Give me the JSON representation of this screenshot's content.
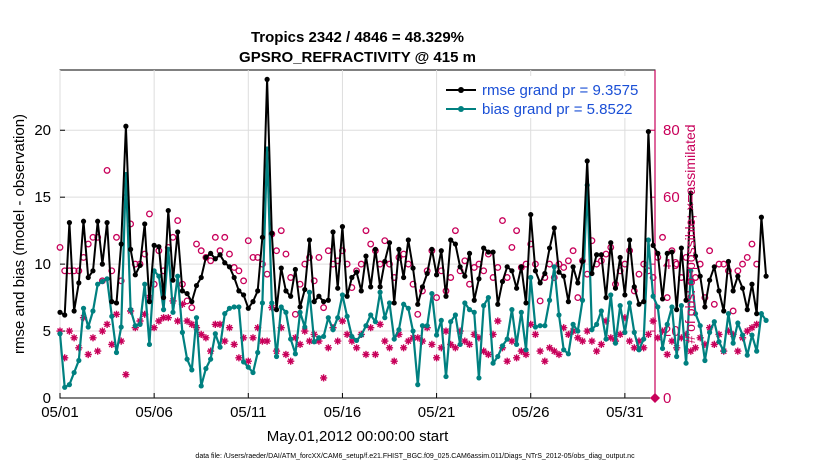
{
  "colors": {
    "rmse": "#000000",
    "bias": "#008080",
    "obs_count": "#c8005a",
    "legend_text": "#1a4fd6",
    "zero_marker": "#c8005a"
  },
  "chart_data": {
    "type": "line",
    "title": "Tropics 2342 / 4846 = 48.329%",
    "subtitle": "GPSRO_REFRACTIVITY @ 415 m",
    "xlabel": "May.01,2012 00:00:00 start",
    "ylabel": "rmse and bias (model - observation)",
    "y2label": "# of obs: o=possible; ×=assimilated",
    "footnote": "data file: /Users/raeder/DAI/ATM_forcXX/CAM6_setup/f.e21.FHIST_BGC.f09_025.CAM6assim.011/Diags_NTrS_2012-05/obs_diag_output.nc",
    "xlim": [
      0,
      31.6
    ],
    "ylim": [
      0,
      24.5
    ],
    "y2lim": [
      0,
      98
    ],
    "x_tick_positions": [
      0,
      5,
      10,
      15,
      20,
      25,
      30
    ],
    "x_tick_labels": [
      "05/01",
      "05/06",
      "05/11",
      "05/16",
      "05/21",
      "05/26",
      "05/31"
    ],
    "y_ticks": [
      0,
      5,
      10,
      15,
      20
    ],
    "y2_ticks": [
      0,
      20,
      40,
      60,
      80
    ],
    "legend": [
      {
        "name": "rmse grand pr = 9.3575",
        "series": "rmse"
      },
      {
        "name": "bias grand pr = 5.8522",
        "series": "bias"
      }
    ],
    "legend_position": "top-right",
    "x_step_days": 0.25,
    "series": [
      {
        "name": "rmse",
        "axis": "left",
        "style": "line-dot",
        "values": [
          6.4,
          6.2,
          13.1,
          6.5,
          8.6,
          13.2,
          9.0,
          9.5,
          13.2,
          10.0,
          13.1,
          7.2,
          7.1,
          11.5,
          20.3,
          11.1,
          9.2,
          9.9,
          13.0,
          7.2,
          11.4,
          11.3,
          7.5,
          14.0,
          8.8,
          12.4,
          8.0,
          7.8,
          7.2,
          8.4,
          9.0,
          10.5,
          10.8,
          10.4,
          10.7,
          10.1,
          9.8,
          9.0,
          8.0,
          7.7,
          6.7,
          7.2,
          8.0,
          12.0,
          23.8,
          12.3,
          6.6,
          9.7,
          8.0,
          7.6,
          9.6,
          6.8,
          8.1,
          11.8,
          7.2,
          7.6,
          7.2,
          7.3,
          12.4,
          8.2,
          12.8,
          7.6,
          9.0,
          9.4,
          8.0,
          10.6,
          8.3,
          11.1,
          8.3,
          10.2,
          11.6,
          7.1,
          11.1,
          9.0,
          11.8,
          9.7,
          7.0,
          8.3,
          9.3,
          11.1,
          9.2,
          11.0,
          7.6,
          11.8,
          11.5,
          9.8,
          9.1,
          10.8,
          7.3,
          8.9,
          11.2,
          10.9,
          10.9,
          7.0,
          8.7,
          9.8,
          9.5,
          8.2,
          9.8,
          7.1,
          13.7,
          9.5,
          8.6,
          9.3,
          11.2,
          12.7,
          9.4,
          9.1,
          7.2,
          9.8,
          8.6,
          10.2,
          17.7,
          9.3,
          10.7,
          10.7,
          7.5,
          11.6,
          8.2,
          10.5,
          7.7,
          11.8,
          8.3,
          7.0,
          7.2,
          19.9,
          11.4,
          10.8,
          7.4,
          10.8,
          10.9,
          6.6,
          11.2,
          7.3,
          15.3,
          10.6,
          9.1,
          6.8,
          8.8,
          9.8,
          8.0,
          6.5,
          10.2,
          8.0,
          9.1,
          8.2,
          6.6,
          8.5,
          6.3,
          13.5,
          9.1
        ]
      },
      {
        "name": "bias",
        "axis": "left",
        "style": "line-dot",
        "values": [
          4.8,
          0.8,
          1.0,
          1.9,
          2.8,
          6.7,
          5.3,
          6.5,
          8.5,
          8.7,
          8.9,
          6.1,
          3.4,
          5.3,
          16.7,
          6.6,
          5.4,
          5.5,
          8.5,
          4.0,
          9.5,
          9.1,
          6.6,
          11.1,
          6.4,
          9.1,
          4.9,
          2.9,
          2.1,
          6.0,
          0.9,
          2.2,
          2.9,
          4.8,
          3.8,
          6.3,
          6.7,
          6.8,
          6.8,
          2.7,
          2.3,
          1.9,
          3.4,
          7.1,
          18.6,
          7.1,
          3.1,
          6.8,
          6.4,
          4.4,
          3.3,
          6.4,
          5.3,
          7.9,
          4.2,
          4.5,
          4.6,
          6.0,
          5.1,
          6.0,
          7.7,
          6.1,
          4.6,
          4.3,
          4.7,
          5.4,
          6.2,
          5.7,
          7.9,
          6.0,
          7.1,
          4.4,
          5.1,
          7.0,
          6.7,
          5.0,
          1.0,
          5.4,
          5.4,
          7.8,
          4.7,
          5.8,
          1.6,
          5.7,
          6.2,
          4.0,
          7.1,
          6.6,
          6.4,
          1.5,
          6.9,
          7.5,
          2.6,
          3.1,
          3.9,
          4.4,
          6.6,
          4.0,
          6.4,
          3.6,
          9.0,
          5.3,
          5.4,
          5.4,
          7.3,
          9.8,
          6.2,
          3.6,
          3.3,
          5.5,
          5.0,
          7.3,
          15.9,
          5.1,
          5.5,
          6.5,
          4.4,
          7.7,
          4.1,
          6.9,
          4.9,
          7.1,
          4.9,
          3.6,
          4.4,
          11.8,
          7.6,
          6.8,
          3.7,
          5.5,
          6.8,
          3.1,
          6.9,
          2.6,
          9.5,
          6.3,
          5.4,
          2.8,
          4.9,
          5.7,
          4.2,
          3.5,
          6.3,
          4.1,
          5.6,
          4.7,
          3.2,
          4.7,
          3.5,
          6.3,
          5.8
        ]
      },
      {
        "name": "possible",
        "axis": "right",
        "marker": "circle",
        "values": [
          45,
          38,
          38,
          38,
          38,
          42,
          46,
          48,
          48,
          35,
          68,
          38,
          48,
          35,
          60,
          52,
          40,
          40,
          43,
          55,
          34,
          44,
          38,
          45,
          48,
          53,
          34,
          29,
          27,
          46,
          44,
          42,
          41,
          48,
          44,
          48,
          43,
          39,
          38,
          35,
          47,
          42,
          42,
          40,
          37,
          49,
          44,
          50,
          43,
          36,
          25,
          34,
          40,
          42,
          35,
          42,
          27,
          44,
          40,
          41,
          44,
          40,
          33,
          38,
          40,
          50,
          46,
          44,
          40,
          47,
          40,
          36,
          42,
          43,
          40,
          34,
          25,
          32,
          38,
          44,
          30,
          38,
          32,
          36,
          50,
          38,
          41,
          34,
          39,
          40,
          38,
          43,
          36,
          39,
          53,
          36,
          45,
          50,
          39,
          40,
          46,
          40,
          29,
          36,
          40,
          36,
          40,
          39,
          41,
          44,
          30,
          41,
          37,
          47,
          40,
          41,
          43,
          45,
          34,
          38,
          40,
          44,
          32,
          37,
          40,
          38,
          36,
          42,
          48,
          30,
          44,
          40,
          36,
          42,
          35,
          36,
          40,
          30,
          44,
          28,
          40,
          40,
          38,
          26,
          38,
          40,
          42,
          46,
          40
        ]
      },
      {
        "name": "assimilated",
        "axis": "right",
        "marker": "star",
        "values": [
          20,
          12,
          20,
          18,
          15,
          24,
          13,
          18,
          14,
          20,
          22,
          16,
          25,
          17,
          7,
          26,
          21,
          23,
          25,
          30,
          21,
          23,
          24,
          24,
          29,
          23,
          28,
          23,
          22,
          21,
          19,
          18,
          14,
          22,
          22,
          17,
          21,
          16,
          12,
          18,
          11,
          18,
          21,
          17,
          17,
          27,
          14,
          21,
          13,
          11,
          18,
          16,
          20,
          17,
          19,
          17,
          6,
          15,
          21,
          17,
          23,
          19,
          17,
          15,
          19,
          13,
          21,
          13,
          22,
          17,
          15,
          11,
          19,
          15,
          17,
          18,
          18,
          17,
          21,
          16,
          12,
          15,
          20,
          16,
          15,
          20,
          17,
          16,
          19,
          18,
          14,
          13,
          19,
          23,
          15,
          11,
          17,
          12,
          14,
          13,
          22,
          19,
          14,
          11,
          15,
          14,
          13,
          21,
          19,
          20,
          18,
          17,
          20,
          17,
          14,
          16,
          23,
          18,
          17,
          19,
          24,
          17,
          15,
          17,
          15,
          19,
          23,
          18,
          20,
          13,
          17,
          15,
          18,
          19,
          14,
          15,
          18,
          16,
          21,
          16,
          19,
          14,
          20,
          19,
          14,
          18,
          20,
          21,
          22
        ]
      }
    ]
  }
}
